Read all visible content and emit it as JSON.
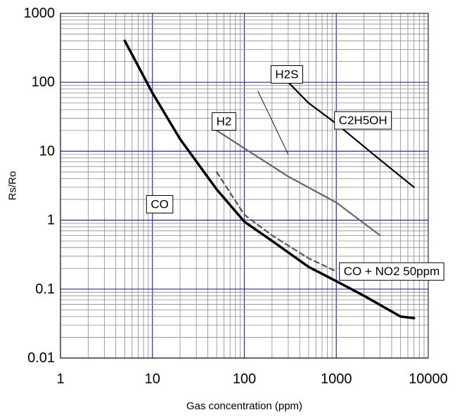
{
  "chart_data": {
    "type": "line",
    "title": "",
    "xlabel": "Gas concentration (ppm)",
    "ylabel": "Rs/Ro",
    "x_scale": "log",
    "y_scale": "log",
    "xlim": [
      1,
      10000
    ],
    "ylim": [
      0.01,
      1000
    ],
    "grid": true,
    "x_ticks": [
      "1",
      "10",
      "100",
      "1000",
      "10000"
    ],
    "y_ticks": [
      "0.01",
      "0.1",
      "1",
      "10",
      "100",
      "1000"
    ],
    "series": [
      {
        "name": "CO",
        "style": "solid-thick",
        "color": "#000000",
        "points": [
          [
            5,
            400
          ],
          [
            10,
            70
          ],
          [
            20,
            15
          ],
          [
            50,
            2.8
          ],
          [
            100,
            0.95
          ],
          [
            200,
            0.5
          ],
          [
            500,
            0.21
          ],
          [
            1000,
            0.13
          ],
          [
            2000,
            0.08
          ],
          [
            5000,
            0.04
          ],
          [
            7000,
            0.038
          ]
        ]
      },
      {
        "name": "CO + NO2 50ppm",
        "style": "dashed",
        "color": "#555555",
        "points": [
          [
            50,
            5
          ],
          [
            70,
            2.5
          ],
          [
            100,
            1.2
          ],
          [
            200,
            0.6
          ],
          [
            500,
            0.28
          ],
          [
            1000,
            0.18
          ]
        ]
      },
      {
        "name": "H2",
        "style": "solid",
        "color": "#666666",
        "points": [
          [
            50,
            20
          ],
          [
            100,
            11
          ],
          [
            300,
            4.3
          ],
          [
            1000,
            1.8
          ],
          [
            3000,
            0.6
          ]
        ]
      },
      {
        "name": "H2S",
        "style": "solid-thin",
        "color": "#000000",
        "points": []
      },
      {
        "name": "C2H5OH",
        "style": "solid",
        "color": "#000000",
        "points": [
          [
            300,
            100
          ],
          [
            500,
            50
          ],
          [
            1000,
            25
          ],
          [
            3000,
            7.5
          ],
          [
            7000,
            3
          ]
        ]
      }
    ],
    "annotations": [
      {
        "text": "H2S",
        "anchor": [
          290,
          130
        ]
      },
      {
        "text": "H2",
        "anchor": [
          60,
          27
        ]
      },
      {
        "text": "C2H5OH",
        "anchor": [
          1950,
          28
        ]
      },
      {
        "text": "CO",
        "anchor": [
          12,
          1.7
        ]
      },
      {
        "text": "CO + NO2 50ppm",
        "anchor": [
          4000,
          0.18
        ]
      }
    ]
  }
}
